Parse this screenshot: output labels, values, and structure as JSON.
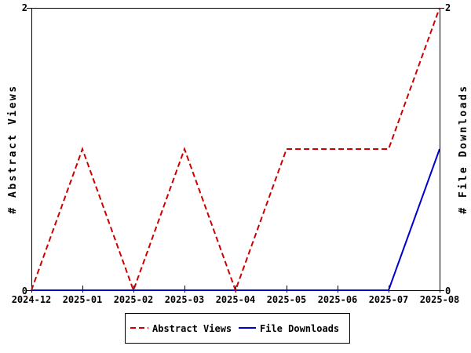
{
  "chart_data": {
    "type": "line",
    "title": "",
    "categories": [
      "2024-12",
      "2025-01",
      "2025-02",
      "2025-03",
      "2025-04",
      "2025-05",
      "2025-06",
      "2025-07",
      "2025-08"
    ],
    "series": [
      {
        "name": "Abstract Views",
        "color": "#cc0000",
        "style": "dashed",
        "axis": "left",
        "values": [
          0,
          1,
          0,
          1,
          0,
          1,
          1,
          1,
          2
        ]
      },
      {
        "name": "File Downloads",
        "color": "#0000cc",
        "style": "solid",
        "axis": "right",
        "values": [
          0,
          0,
          0,
          0,
          0,
          0,
          0,
          0,
          1
        ]
      }
    ],
    "xlabel": "",
    "ylabel_left": "# Abstract Views",
    "ylabel_right": "# File Downloads",
    "ylim": [
      0,
      2
    ],
    "ytick_values": [
      0,
      2
    ],
    "ytick_labels": [
      "0",
      "2"
    ],
    "grid": false,
    "legend_position": "bottom-center",
    "axis_color": "#000000",
    "background": "#ffffff"
  }
}
